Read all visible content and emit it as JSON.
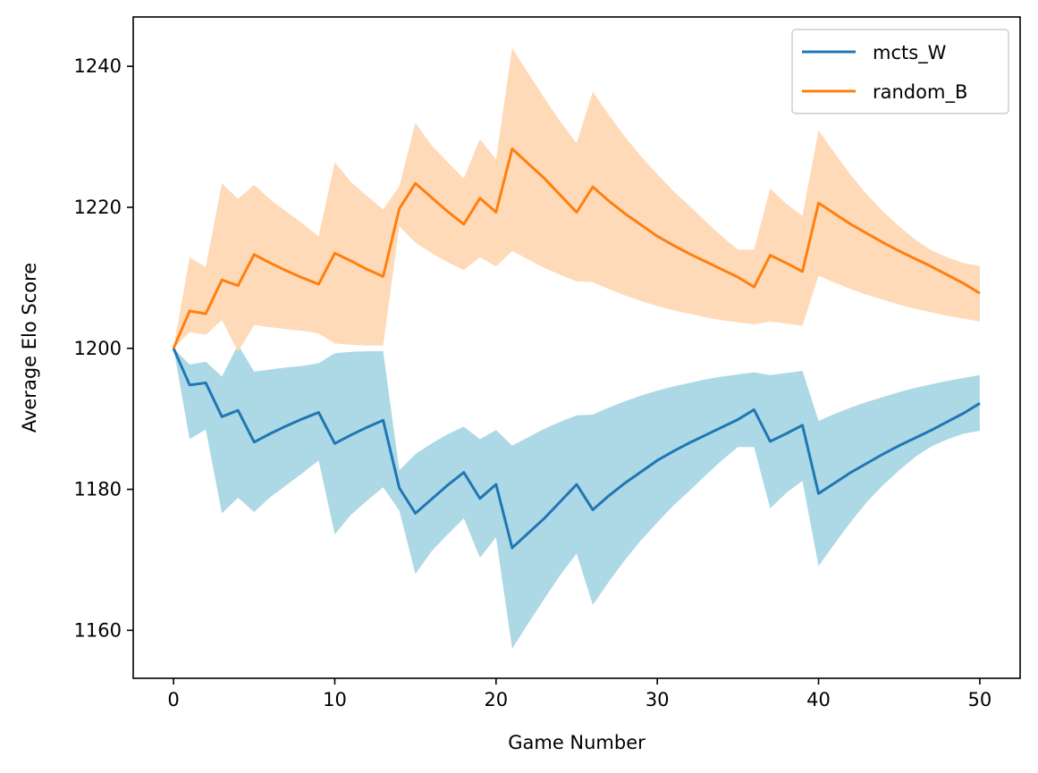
{
  "chart_data": {
    "type": "line",
    "title": "",
    "xlabel": "Game Number",
    "ylabel": "Average Elo Score",
    "xlim": [
      -2.5,
      52.5
    ],
    "ylim": [
      1153.2,
      1247.0
    ],
    "xticks": [
      0,
      10,
      20,
      30,
      40,
      50
    ],
    "yticks": [
      1160,
      1180,
      1200,
      1220,
      1240
    ],
    "grid": false,
    "legend": "top-right",
    "x": [
      0,
      1,
      2,
      3,
      4,
      5,
      6,
      7,
      8,
      9,
      10,
      11,
      12,
      13,
      14,
      15,
      16,
      17,
      18,
      19,
      20,
      21,
      22,
      23,
      24,
      25,
      26,
      27,
      28,
      29,
      30,
      31,
      32,
      33,
      34,
      35,
      36,
      37,
      38,
      39,
      40,
      41,
      42,
      43,
      44,
      45,
      46,
      47,
      48,
      49,
      50
    ],
    "series": [
      {
        "name": "mcts_W",
        "color": "#1f77b4",
        "band_color": "#add8e6",
        "values": [
          1200,
          1194.8,
          1195.1,
          1190.3,
          1191.2,
          1186.7,
          1187.9,
          1189.0,
          1190.0,
          1190.9,
          1186.5,
          1187.7,
          1188.8,
          1189.8,
          1180.2,
          1176.6,
          1178.6,
          1180.6,
          1182.4,
          1178.7,
          1180.7,
          1171.7,
          1173.8,
          1175.9,
          1178.3,
          1180.7,
          1177.1,
          1179.1,
          1180.9,
          1182.5,
          1184.1,
          1185.4,
          1186.6,
          1187.7,
          1188.8,
          1189.9,
          1191.3,
          1186.8,
          1187.9,
          1189.1,
          1179.4,
          1180.9,
          1182.4,
          1183.7,
          1185.0,
          1186.2,
          1187.3,
          1188.4,
          1189.6,
          1190.8,
          1192.2
        ],
        "lower": [
          1200,
          1187.1,
          1188.5,
          1176.6,
          1178.8,
          1176.8,
          1178.9,
          1180.6,
          1182.3,
          1184.1,
          1173.6,
          1176.4,
          1178.4,
          1180.3,
          1177.0,
          1168.0,
          1171.2,
          1173.6,
          1175.9,
          1170.3,
          1173.2,
          1157.4,
          1161.0,
          1164.5,
          1167.9,
          1170.9,
          1163.6,
          1166.9,
          1170.0,
          1172.8,
          1175.3,
          1177.7,
          1179.8,
          1182.0,
          1184.1,
          1186.0,
          1186.0,
          1177.3,
          1179.5,
          1181.2,
          1169.1,
          1172.3,
          1175.4,
          1178.2,
          1180.6,
          1182.7,
          1184.6,
          1186.1,
          1187.1,
          1187.9,
          1188.3
        ],
        "upper": [
          1200,
          1197.7,
          1198.1,
          1196.0,
          1200.5,
          1196.7,
          1197.0,
          1197.3,
          1197.5,
          1197.9,
          1199.3,
          1199.5,
          1199.6,
          1199.6,
          1182.7,
          1185.0,
          1186.5,
          1187.8,
          1188.9,
          1187.1,
          1188.4,
          1186.2,
          1187.4,
          1188.6,
          1189.6,
          1190.5,
          1190.6,
          1191.6,
          1192.5,
          1193.3,
          1194.0,
          1194.6,
          1195.1,
          1195.6,
          1196.0,
          1196.3,
          1196.6,
          1196.2,
          1196.5,
          1196.8,
          1189.7,
          1190.7,
          1191.6,
          1192.4,
          1193.1,
          1193.8,
          1194.4,
          1194.9,
          1195.4,
          1195.8,
          1196.2
        ]
      },
      {
        "name": "random_B",
        "color": "#ff7f0e",
        "band_color": "#ffdab9",
        "values": [
          1200,
          1205.3,
          1204.9,
          1209.7,
          1208.9,
          1213.3,
          1212.1,
          1211.0,
          1210.0,
          1209.1,
          1213.5,
          1212.4,
          1211.2,
          1210.2,
          1219.8,
          1223.4,
          1221.4,
          1219.4,
          1217.6,
          1221.3,
          1219.3,
          1228.3,
          1226.2,
          1224.1,
          1221.7,
          1219.3,
          1222.9,
          1220.9,
          1219.1,
          1217.5,
          1215.9,
          1214.6,
          1213.4,
          1212.3,
          1211.2,
          1210.1,
          1208.7,
          1213.2,
          1212.1,
          1210.9,
          1220.6,
          1219.1,
          1217.6,
          1216.3,
          1215.0,
          1213.8,
          1212.7,
          1211.6,
          1210.4,
          1209.2,
          1207.8
        ],
        "lower": [
          1200,
          1202.3,
          1201.9,
          1204.0,
          1199.5,
          1203.3,
          1203.0,
          1202.7,
          1202.5,
          1202.1,
          1200.7,
          1200.5,
          1200.4,
          1200.4,
          1217.3,
          1215.0,
          1213.5,
          1212.2,
          1211.1,
          1212.9,
          1211.6,
          1213.8,
          1212.6,
          1211.4,
          1210.4,
          1209.5,
          1209.4,
          1208.4,
          1207.5,
          1206.7,
          1206.0,
          1205.4,
          1204.9,
          1204.4,
          1204.0,
          1203.7,
          1203.4,
          1203.8,
          1203.5,
          1203.2,
          1210.3,
          1209.3,
          1208.4,
          1207.6,
          1206.9,
          1206.2,
          1205.6,
          1205.1,
          1204.6,
          1204.2,
          1203.8
        ],
        "upper": [
          1200,
          1212.9,
          1211.5,
          1223.4,
          1221.2,
          1223.2,
          1221.1,
          1219.4,
          1217.7,
          1215.9,
          1226.4,
          1223.6,
          1221.6,
          1219.7,
          1223.0,
          1232.0,
          1228.8,
          1226.4,
          1224.1,
          1229.7,
          1226.8,
          1242.6,
          1239.0,
          1235.5,
          1232.1,
          1229.1,
          1236.4,
          1233.1,
          1230.0,
          1227.2,
          1224.7,
          1222.3,
          1220.2,
          1218.0,
          1215.9,
          1214.0,
          1214.0,
          1222.7,
          1220.5,
          1218.8,
          1230.9,
          1227.7,
          1224.6,
          1221.8,
          1219.4,
          1217.3,
          1215.4,
          1213.9,
          1212.9,
          1212.1,
          1211.7
        ]
      }
    ]
  }
}
